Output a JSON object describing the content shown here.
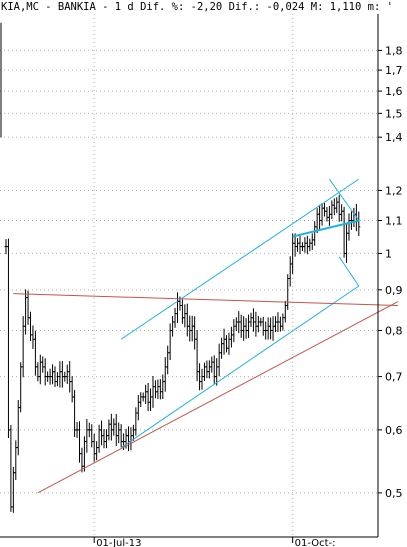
{
  "header": {
    "text": "KIA,MC - BANKIA -  1 d Dif. %: -2,20 Dif.: -0,024 M: 1,110 m: '"
  },
  "chart_data": {
    "type": "ohlc",
    "scale": "log",
    "ylim": [
      0.44,
      2.0
    ],
    "y_ticks": [
      {
        "value": 1.8,
        "label": "1,8"
      },
      {
        "value": 1.7,
        "label": "1,7"
      },
      {
        "value": 1.6,
        "label": "1,6"
      },
      {
        "value": 1.5,
        "label": "1,5"
      },
      {
        "value": 1.4,
        "label": "1,4"
      },
      {
        "value": 1.2,
        "label": "1,2"
      },
      {
        "value": 1.1,
        "label": "1,1"
      },
      {
        "value": 1.0,
        "label": "1"
      },
      {
        "value": 0.9,
        "label": "0,9"
      },
      {
        "value": 0.8,
        "label": "0,8"
      },
      {
        "value": 0.7,
        "label": "0,7"
      },
      {
        "value": 0.6,
        "label": "0,6"
      },
      {
        "value": 0.5,
        "label": "0,5"
      }
    ],
    "x_ticks": [
      {
        "index": 36,
        "label": "01-Jul-13"
      },
      {
        "index": 117,
        "label": "01-Oct-:"
      }
    ],
    "grid": true,
    "n_bars": 145,
    "closes": [
      1.02,
      0.6,
      0.48,
      0.53,
      0.57,
      0.64,
      0.72,
      0.81,
      0.88,
      0.83,
      0.79,
      0.78,
      0.72,
      0.7,
      0.73,
      0.72,
      0.7,
      0.7,
      0.7,
      0.71,
      0.69,
      0.7,
      0.71,
      0.7,
      0.7,
      0.71,
      0.69,
      0.66,
      0.6,
      0.6,
      0.56,
      0.54,
      0.58,
      0.6,
      0.6,
      0.58,
      0.56,
      0.57,
      0.6,
      0.59,
      0.58,
      0.59,
      0.61,
      0.6,
      0.61,
      0.59,
      0.6,
      0.58,
      0.58,
      0.59,
      0.58,
      0.59,
      0.6,
      0.63,
      0.65,
      0.66,
      0.66,
      0.67,
      0.65,
      0.66,
      0.68,
      0.67,
      0.68,
      0.67,
      0.69,
      0.72,
      0.75,
      0.8,
      0.82,
      0.84,
      0.87,
      0.86,
      0.83,
      0.84,
      0.81,
      0.8,
      0.81,
      0.78,
      0.71,
      0.69,
      0.7,
      0.72,
      0.71,
      0.72,
      0.73,
      0.7,
      0.72,
      0.75,
      0.77,
      0.78,
      0.76,
      0.78,
      0.79,
      0.81,
      0.82,
      0.82,
      0.8,
      0.81,
      0.8,
      0.82,
      0.83,
      0.82,
      0.81,
      0.82,
      0.82,
      0.8,
      0.8,
      0.81,
      0.8,
      0.81,
      0.82,
      0.82,
      0.81,
      0.83,
      0.86,
      0.93,
      0.97,
      1.03,
      1.02,
      1.03,
      1.02,
      1.02,
      1.03,
      1.02,
      1.03,
      1.04,
      1.08,
      1.12,
      1.1,
      1.14,
      1.13,
      1.11,
      1.12,
      1.15,
      1.14,
      1.16,
      1.12,
      1.13,
      1.0,
      1.06,
      1.1,
      1.1,
      1.12,
      1.1,
      1.08
    ],
    "lines": [
      {
        "name": "upper-channel",
        "color": "#1fb0e0",
        "from": [
          47,
          0.78
        ],
        "to": [
          144,
          1.24
        ]
      },
      {
        "name": "lower-channel",
        "color": "#1fb0e0",
        "from": [
          47,
          0.57
        ],
        "to": [
          144,
          0.91
        ]
      },
      {
        "name": "resistance",
        "color": "#c0564a",
        "from": [
          3,
          0.89
        ],
        "to": [
          160,
          0.86
        ]
      },
      {
        "name": "support",
        "color": "#c0564a",
        "from": [
          13,
          0.5
        ],
        "to": [
          160,
          0.87
        ]
      },
      {
        "name": "wedge-top",
        "color": "#1fb0e0",
        "from": [
          132,
          1.24
        ],
        "to": [
          144,
          1.1
        ]
      },
      {
        "name": "wedge-bottom",
        "color": "#1fb0e0",
        "from": [
          136,
          0.99
        ],
        "to": [
          144,
          0.91
        ]
      },
      {
        "name": "neckline",
        "color": "#1fb0e0",
        "from": [
          117,
          1.05
        ],
        "to": [
          144,
          1.1
        ]
      }
    ]
  }
}
